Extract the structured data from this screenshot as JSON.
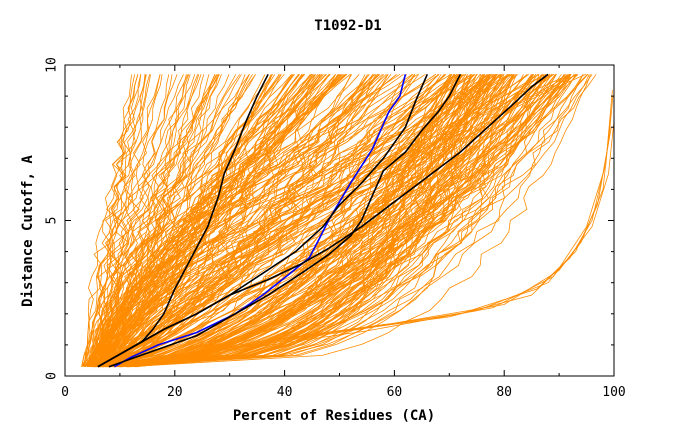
{
  "chart_data": {
    "type": "line",
    "title": "T1092-D1",
    "xlabel": "Percent of Residues (CA)",
    "ylabel": "Distance Cutoff, A",
    "xlim": [
      0,
      100
    ],
    "ylim": [
      0,
      10
    ],
    "x_ticks": [
      0,
      20,
      40,
      60,
      80,
      100
    ],
    "y_ticks": [
      0,
      5,
      10
    ],
    "x_tick_labels": [
      "0",
      "20",
      "40",
      "60",
      "80",
      "100"
    ],
    "y_tick_labels": [
      "0",
      "5",
      "10"
    ],
    "grid": false,
    "colors": {
      "background_models": "#ff8c00",
      "highlighted_models": "#000000",
      "blue_model": "#0000ff"
    },
    "series": [
      {
        "color": "#0000ff",
        "x": [
          9,
          12,
          17,
          24,
          31,
          36,
          41,
          44.5,
          46,
          48,
          49,
          52,
          56,
          59,
          61,
          62
        ],
        "y": [
          0.3,
          0.6,
          1.0,
          1.4,
          2.0,
          2.6,
          3.3,
          3.8,
          4.3,
          5.0,
          5.3,
          6.2,
          7.3,
          8.5,
          9.0,
          9.7
        ]
      },
      {
        "color": "#000000",
        "x": [
          6,
          10,
          14,
          16,
          18,
          20,
          23,
          26,
          28,
          29,
          31,
          33,
          35,
          37
        ],
        "y": [
          0.3,
          0.7,
          1.1,
          1.5,
          2.0,
          2.8,
          3.8,
          4.8,
          5.8,
          6.5,
          7.3,
          8.2,
          9.0,
          9.7
        ]
      },
      {
        "color": "#000000",
        "x": [
          6,
          12,
          18,
          24,
          30,
          36,
          42,
          47,
          50,
          54,
          58,
          62,
          64,
          66
        ],
        "y": [
          0.3,
          0.9,
          1.5,
          2.0,
          2.6,
          3.3,
          4.0,
          4.8,
          5.5,
          6.2,
          7.0,
          8.0,
          8.9,
          9.7
        ]
      },
      {
        "color": "#000000",
        "x": [
          8,
          16,
          24,
          31,
          37,
          43,
          48,
          52,
          54,
          56,
          58,
          62,
          65,
          68,
          70,
          72
        ],
        "y": [
          0.3,
          0.8,
          1.3,
          2.0,
          2.6,
          3.3,
          3.9,
          4.5,
          5.0,
          5.8,
          6.6,
          7.2,
          7.9,
          8.5,
          9.0,
          9.7
        ]
      },
      {
        "color": "#000000",
        "x": [
          6,
          12,
          18,
          24,
          30,
          37,
          43,
          48,
          54,
          60,
          66,
          72,
          77,
          82,
          85,
          88
        ],
        "y": [
          0.3,
          0.9,
          1.5,
          2.0,
          2.6,
          3.1,
          3.6,
          4.1,
          4.8,
          5.6,
          6.4,
          7.2,
          8.0,
          8.8,
          9.3,
          9.7
        ]
      }
    ]
  }
}
